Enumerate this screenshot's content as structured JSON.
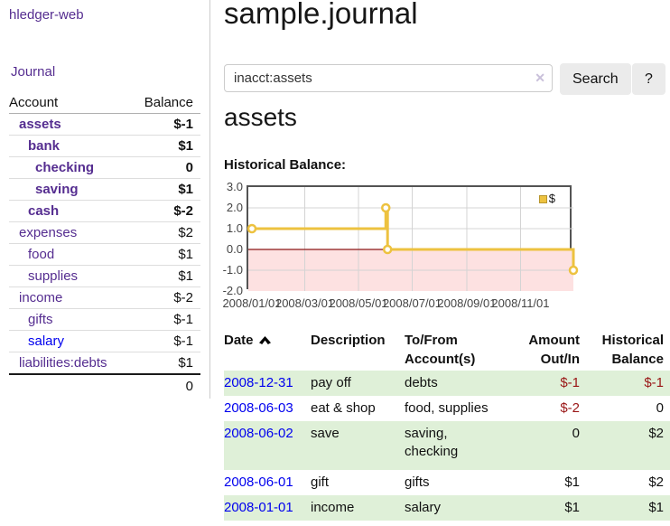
{
  "colors": {
    "link_purple": "#552d90",
    "link_blue": "#0000ee",
    "negative_strong": "#9a1616",
    "negative_muted": "#c08383",
    "row_stripe_green": "#dff0d8",
    "button_gray": "#ebebeb",
    "chart_line_gold": "#edc240",
    "chart_negative_fill": "#fde1e1",
    "chart_zero_line": "#8c1717",
    "chart_grid": "#d4d4d4",
    "chart_border": "#545454"
  },
  "sidebar": {
    "brand": "hledger-web",
    "journal_label": "Journal",
    "accounts": {
      "headers": [
        "Account",
        "Balance"
      ],
      "rows": [
        {
          "account": "assets",
          "balance": "$-1",
          "depth": 1,
          "in_query": true,
          "balance_class": "neg-strong",
          "link": "purple"
        },
        {
          "account": "bank",
          "balance": "$1",
          "depth": 2,
          "in_query": true,
          "balance_class": "",
          "link": "purple"
        },
        {
          "account": "checking",
          "balance": "0",
          "depth": 3,
          "in_query": true,
          "balance_class": "",
          "link": "purple"
        },
        {
          "account": "saving",
          "balance": "$1",
          "depth": 3,
          "in_query": true,
          "balance_class": "",
          "link": "purple"
        },
        {
          "account": "cash",
          "balance": "$-2",
          "depth": 2,
          "in_query": true,
          "balance_class": "neg-strong",
          "link": "purple"
        },
        {
          "account": "expenses",
          "balance": "$2",
          "depth": 1,
          "in_query": false,
          "balance_class": "",
          "link": "purple"
        },
        {
          "account": "food",
          "balance": "$1",
          "depth": 2,
          "in_query": false,
          "balance_class": "",
          "link": "purple"
        },
        {
          "account": "supplies",
          "balance": "$1",
          "depth": 2,
          "in_query": false,
          "balance_class": "",
          "link": "purple"
        },
        {
          "account": "income",
          "balance": "$-2",
          "depth": 1,
          "in_query": false,
          "balance_class": "neg-muted",
          "link": "purple"
        },
        {
          "account": "gifts",
          "balance": "$-1",
          "depth": 2,
          "in_query": false,
          "balance_class": "neg-muted",
          "link": "purple"
        },
        {
          "account": "salary",
          "balance": "$-1",
          "depth": 2,
          "in_query": false,
          "balance_class": "neg-muted",
          "link": "blue"
        },
        {
          "account": "liabilities:debts",
          "balance": "$1",
          "depth": 1,
          "in_query": false,
          "balance_class": "",
          "link": "purple"
        }
      ],
      "total": "0"
    }
  },
  "main": {
    "title": "sample.journal",
    "search": {
      "value": "inacct:assets",
      "clear_glyph": "✕",
      "button_label": "Search",
      "help_label": "?"
    },
    "account_heading": "assets",
    "chart_label": "Historical Balance:"
  },
  "chart_data": {
    "type": "line",
    "title": "Historical Balance:",
    "style": "step-line-with-markers",
    "x_range": [
      "2008-01-01",
      "2008-12-31"
    ],
    "ylim": [
      -2,
      3
    ],
    "yticks": [
      3,
      2,
      1,
      0,
      -1,
      -2
    ],
    "xtick_labels": [
      "2008/01/01",
      "2008/03/01",
      "2008/05/01",
      "2008/07/01",
      "2008/09/01",
      "2008/11/01"
    ],
    "xtick_dates": [
      "2008-01-01",
      "2008-03-01",
      "2008-05-01",
      "2008-07-01",
      "2008-09-01",
      "2008-11-01"
    ],
    "series": [
      {
        "name": "$",
        "color": "#edc240",
        "points": [
          [
            "2008-01-01",
            1
          ],
          [
            "2008-06-01",
            2
          ],
          [
            "2008-06-03",
            0
          ],
          [
            "2008-12-31",
            -1
          ]
        ]
      }
    ],
    "legend": {
      "label": "$",
      "position": "top-right"
    },
    "grid": true,
    "negative_region_shaded": true,
    "xlabel": "",
    "ylabel": ""
  },
  "register": {
    "headers": [
      {
        "line1": "Date",
        "line2": "",
        "align": "left",
        "sorted_asc": true
      },
      {
        "line1": "Description",
        "line2": "",
        "align": "left",
        "sorted_asc": false
      },
      {
        "line1": "To/From",
        "line2": "Account(s)",
        "align": "left",
        "sorted_asc": false
      },
      {
        "line1": "Amount",
        "line2": "Out/In",
        "align": "right",
        "sorted_asc": false
      },
      {
        "line1": "Historical",
        "line2": "Balance",
        "align": "right",
        "sorted_asc": false
      }
    ],
    "rows": [
      {
        "date": "2008-12-31",
        "description": "pay off",
        "accounts": "debts",
        "amount": "$-1",
        "amount_neg": true,
        "balance": "$-1",
        "balance_neg": true,
        "striped": true,
        "tall": false
      },
      {
        "date": "2008-06-03",
        "description": "eat & shop",
        "accounts": "food, supplies",
        "amount": "$-2",
        "amount_neg": true,
        "balance": "0",
        "balance_neg": false,
        "striped": false,
        "tall": false
      },
      {
        "date": "2008-06-02",
        "description": "save",
        "accounts": "saving, checking",
        "amount": "0",
        "amount_neg": false,
        "balance": "$2",
        "balance_neg": false,
        "striped": true,
        "tall": true
      },
      {
        "date": "2008-06-01",
        "description": "gift",
        "accounts": "gifts",
        "amount": "$1",
        "amount_neg": false,
        "balance": "$2",
        "balance_neg": false,
        "striped": false,
        "tall": false
      },
      {
        "date": "2008-01-01",
        "description": "income",
        "accounts": "salary",
        "amount": "$1",
        "amount_neg": false,
        "balance": "$1",
        "balance_neg": false,
        "striped": true,
        "tall": false
      }
    ]
  }
}
